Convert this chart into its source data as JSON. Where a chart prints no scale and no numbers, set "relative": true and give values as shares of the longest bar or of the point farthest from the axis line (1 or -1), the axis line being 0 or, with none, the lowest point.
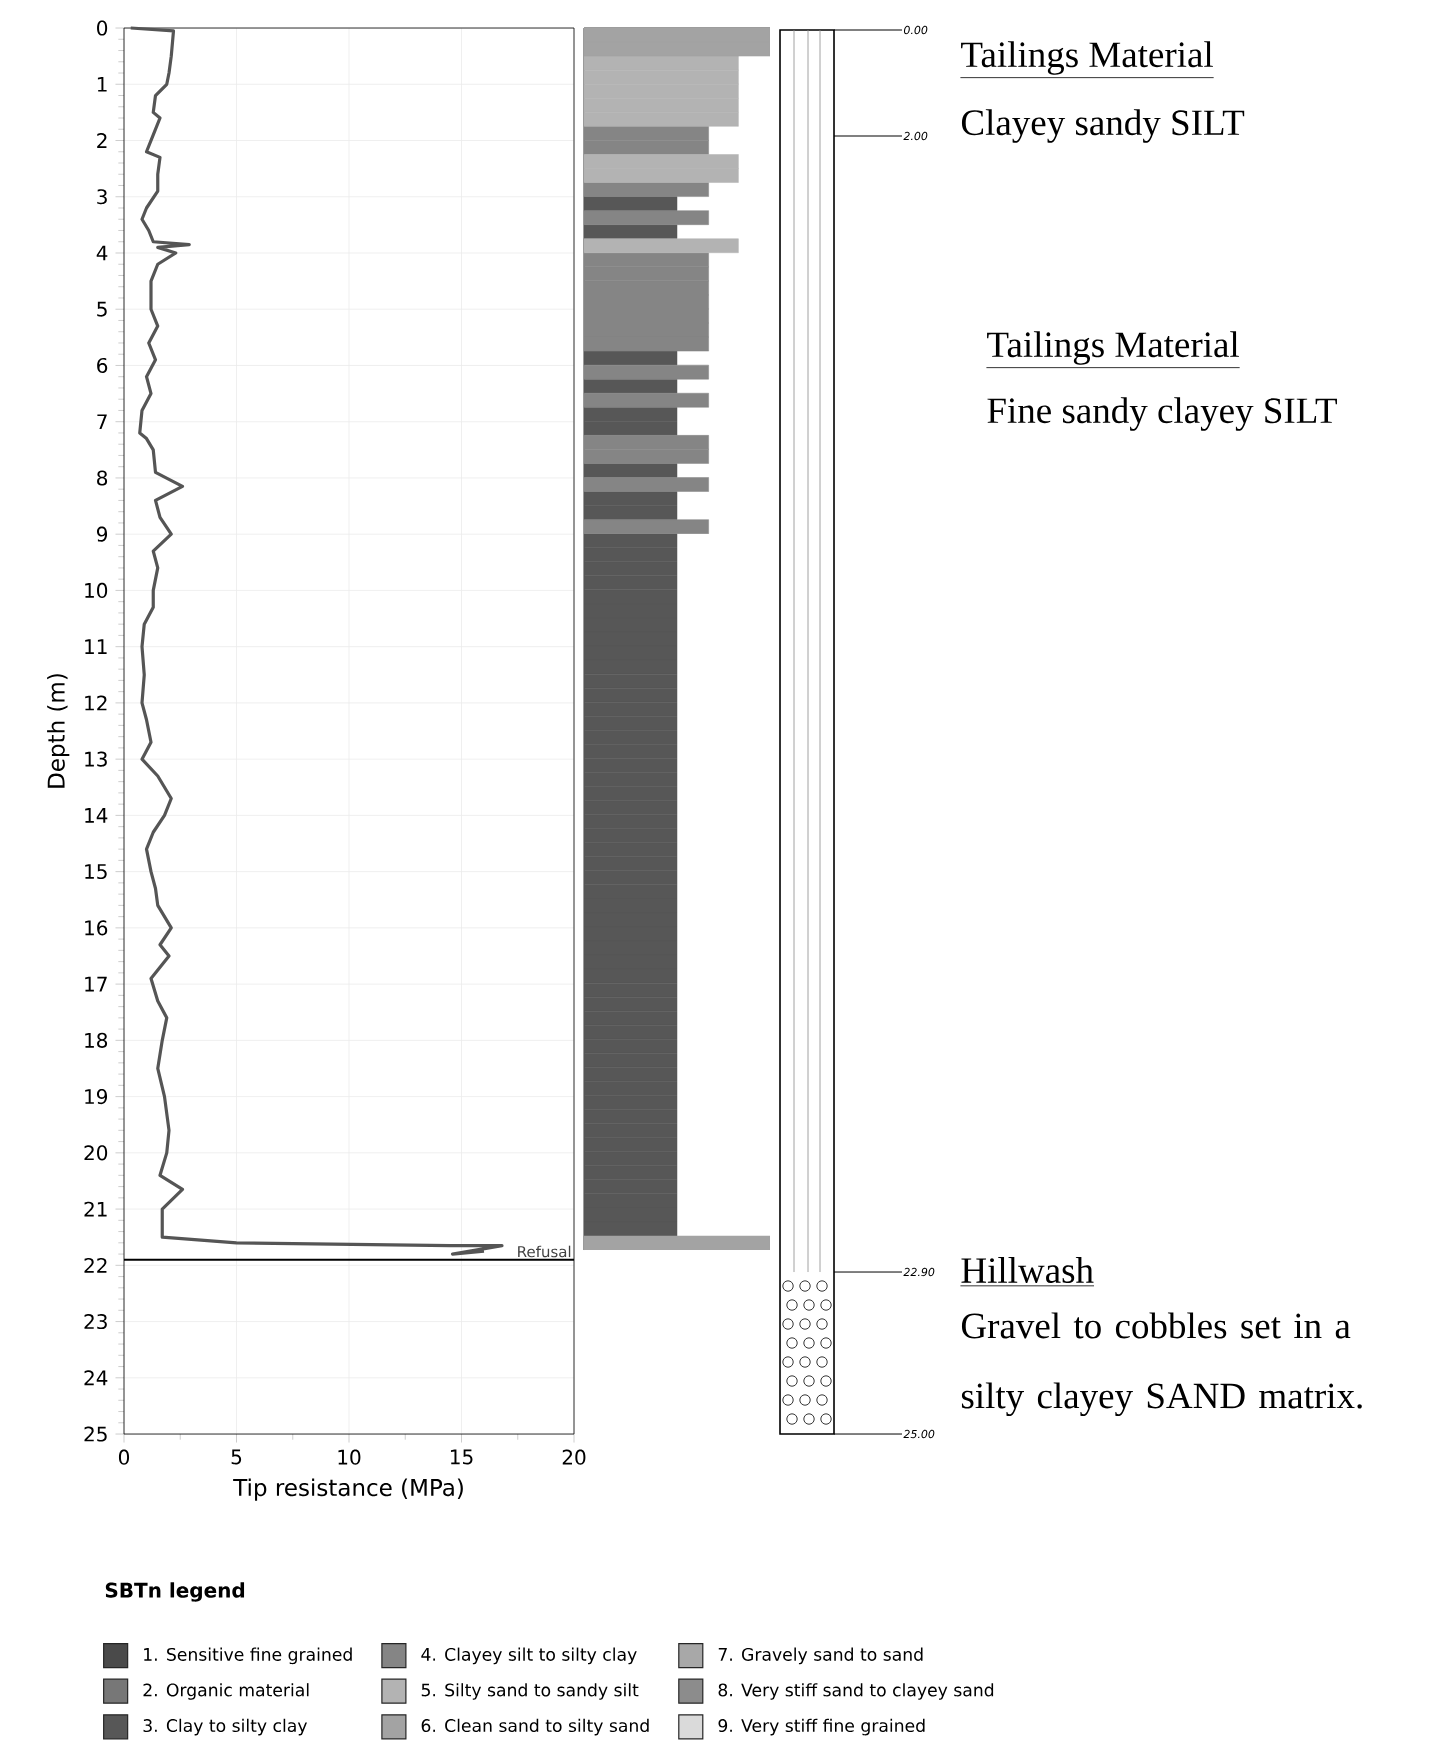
{
  "chart_data": [
    {
      "type": "line",
      "xlabel": "Tip resistance (MPa)",
      "ylabel": "Depth (m)",
      "x": [
        0.3,
        2.2,
        2.1,
        2.0,
        1.9,
        1.4,
        1.3,
        1.6,
        1.3,
        1.0,
        1.6,
        1.5,
        1.5,
        1.0,
        0.8,
        1.1,
        1.3,
        2.9,
        1.5,
        2.3,
        1.5,
        1.2,
        1.2,
        1.5,
        1.1,
        1.4,
        1.0,
        1.2,
        0.8,
        0.7,
        1.0,
        1.3,
        1.4,
        2.6,
        1.4,
        1.6,
        2.1,
        1.3,
        1.5,
        1.3,
        1.3,
        0.9,
        0.8,
        0.9,
        0.8,
        1.0,
        1.2,
        0.8,
        1.5,
        2.1,
        1.8,
        1.3,
        1.0,
        1.2,
        1.4,
        1.5,
        2.1,
        1.6,
        2.0,
        1.2,
        1.5,
        1.9,
        1.7,
        1.5,
        1.8,
        2.0,
        1.9,
        1.6,
        2.6,
        1.7,
        1.7,
        5.0,
        14.5,
        16.8,
        14.6,
        16.0
      ],
      "values": [
        0,
        0.05,
        0.5,
        0.8,
        1.0,
        1.2,
        1.5,
        1.6,
        1.9,
        2.2,
        2.3,
        2.6,
        2.9,
        3.2,
        3.4,
        3.6,
        3.8,
        3.85,
        3.9,
        4.0,
        4.2,
        4.5,
        5.0,
        5.3,
        5.6,
        5.9,
        6.2,
        6.5,
        6.8,
        7.2,
        7.3,
        7.5,
        7.9,
        8.15,
        8.4,
        8.7,
        9.0,
        9.3,
        9.6,
        10.0,
        10.3,
        10.6,
        11.0,
        11.5,
        12.0,
        12.3,
        12.7,
        13.0,
        13.3,
        13.7,
        14.0,
        14.3,
        14.6,
        15.0,
        15.3,
        15.6,
        16.0,
        16.3,
        16.5,
        16.9,
        17.3,
        17.6,
        18.0,
        18.5,
        19.0,
        19.6,
        20.0,
        20.4,
        20.65,
        21.0,
        21.5,
        21.6,
        21.65,
        21.65,
        21.8,
        21.75
      ],
      "color": "#555555",
      "xlim": [
        0,
        20
      ],
      "ylim": [
        25,
        0
      ],
      "xticks": [
        0,
        5,
        10,
        15,
        20
      ],
      "yticks": [
        0,
        1,
        2,
        3,
        4,
        5,
        6,
        7,
        8,
        9,
        10,
        11,
        12,
        13,
        14,
        15,
        16,
        17,
        18,
        19,
        20,
        21,
        22,
        23,
        24,
        25
      ],
      "grid": true,
      "ref_lines": [
        {
          "axis": "y",
          "value": 21.9,
          "label": "Refusal",
          "color": "#000000"
        }
      ]
    },
    {
      "type": "bar",
      "orientation": "horizontal",
      "stacked": true,
      "relative": true,
      "legend": "bottom",
      "legend_title": "SBTn legend",
      "categories": [
        null,
        null,
        null,
        null,
        null,
        null,
        null,
        null,
        null,
        null,
        null,
        null,
        null,
        null,
        null,
        null,
        null,
        null,
        null,
        null,
        null,
        null,
        null,
        null,
        null,
        null,
        null,
        null,
        null,
        null,
        null,
        null,
        null,
        null,
        null,
        null,
        null,
        null,
        null,
        null,
        null,
        null,
        null,
        null,
        null,
        null,
        null,
        null,
        null,
        null,
        null,
        null,
        null,
        null,
        null,
        null,
        null,
        null,
        null,
        null,
        null,
        null,
        null,
        null,
        null,
        null,
        null,
        null,
        null,
        null,
        null,
        null,
        null,
        null,
        null,
        null,
        null,
        null,
        null,
        null,
        null,
        null,
        null,
        null,
        null,
        null,
        null
      ],
      "series": [
        {
          "name": "1. Sensitive fine grained",
          "color": "#4a4a4a",
          "values": [
            null,
            null,
            null,
            null,
            null,
            null,
            null,
            null,
            null,
            null,
            null,
            null,
            null,
            null,
            null,
            null,
            null,
            null,
            null,
            null,
            null,
            null,
            null,
            null,
            null,
            null,
            null,
            null,
            null,
            null,
            null,
            null,
            null,
            null,
            null,
            null,
            null,
            null,
            null,
            null,
            null,
            null,
            null,
            null,
            null,
            null,
            null,
            null,
            null,
            null,
            null,
            null,
            null,
            null,
            null,
            null,
            null,
            null,
            null,
            null,
            null,
            null,
            null,
            null,
            null,
            null,
            null,
            null,
            null,
            null,
            null,
            null,
            null,
            null,
            null,
            null,
            null,
            null,
            null,
            null,
            null,
            null,
            null,
            null,
            null,
            null,
            null
          ]
        },
        {
          "name": "2. Organic material",
          "color": "#777777",
          "values": [
            null,
            null,
            null,
            null,
            null,
            null,
            null,
            null,
            null,
            null,
            null,
            null,
            null,
            null,
            null,
            null,
            null,
            null,
            null,
            null,
            null,
            null,
            null,
            null,
            null,
            null,
            null,
            null,
            null,
            null,
            null,
            null,
            null,
            null,
            null,
            null,
            null,
            null,
            null,
            null,
            null,
            null,
            null,
            null,
            null,
            null,
            null,
            null,
            null,
            null,
            null,
            null,
            null,
            null,
            null,
            null,
            null,
            null,
            null,
            null,
            null,
            null,
            null,
            null,
            null,
            null,
            null,
            null,
            null,
            null,
            null,
            null,
            null,
            null,
            null,
            null,
            null,
            null,
            null,
            null,
            null,
            null,
            null,
            null,
            null,
            null,
            null
          ]
        },
        {
          "name": "3. Clay to silty clay",
          "color": "#575757",
          "values": [
            null,
            null,
            null,
            null,
            null,
            null,
            null,
            null,
            null,
            null,
            null,
            null,
            0.5,
            null,
            0.5,
            null,
            null,
            null,
            null,
            null,
            null,
            null,
            null,
            0.5,
            null,
            0.5,
            null,
            0.5,
            0.5,
            null,
            null,
            0.5,
            null,
            0.5,
            0.5,
            null,
            0.5,
            0.5,
            0.5,
            0.5,
            0.5,
            0.5,
            0.5,
            0.5,
            0.5,
            0.5,
            0.5,
            0.5,
            0.5,
            0.5,
            0.5,
            0.5,
            0.5,
            0.5,
            0.5,
            0.5,
            0.5,
            0.5,
            0.5,
            0.5,
            0.5,
            0.5,
            0.5,
            0.5,
            0.5,
            0.5,
            0.5,
            0.5,
            0.5,
            0.5,
            0.5,
            0.5,
            0.5,
            0.5,
            0.5,
            0.5,
            0.5,
            0.5,
            0.5,
            0.5,
            0.5,
            0.5,
            0.5,
            0.5,
            0.5,
            0.5,
            null
          ]
        },
        {
          "name": "4. Clayey silt to silty clay",
          "color": "#858585",
          "values": [
            null,
            null,
            null,
            null,
            null,
            null,
            null,
            0.67,
            0.67,
            null,
            null,
            0.67,
            null,
            0.67,
            null,
            null,
            0.67,
            0.67,
            0.67,
            0.67,
            0.67,
            0.67,
            0.67,
            null,
            0.67,
            null,
            0.67,
            null,
            null,
            0.67,
            0.67,
            null,
            0.67,
            null,
            null,
            0.67,
            null,
            null,
            null,
            null,
            null,
            null,
            null,
            null,
            null,
            null,
            null,
            null,
            null,
            null,
            null,
            null,
            null,
            null,
            null,
            null,
            null,
            null,
            null,
            null,
            null,
            null,
            null,
            null,
            null,
            null,
            null,
            null,
            null,
            null,
            null,
            null,
            null,
            null,
            null,
            null,
            null,
            null,
            null,
            null,
            null,
            null,
            null,
            null,
            null,
            null,
            null
          ]
        },
        {
          "name": "5. Silty sand to sandy silt",
          "color": "#b3b3b3",
          "values": [
            null,
            null,
            0.83,
            0.83,
            0.83,
            0.83,
            0.83,
            null,
            null,
            0.83,
            0.83,
            null,
            null,
            null,
            null,
            0.83,
            null,
            null,
            null,
            null,
            null,
            null,
            null,
            null,
            null,
            null,
            null,
            null,
            null,
            null,
            null,
            null,
            null,
            null,
            null,
            null,
            null,
            null,
            null,
            null,
            null,
            null,
            null,
            null,
            null,
            null,
            null,
            null,
            null,
            null,
            null,
            null,
            null,
            null,
            null,
            null,
            null,
            null,
            null,
            null,
            null,
            null,
            null,
            null,
            null,
            null,
            null,
            null,
            null,
            null,
            null,
            null,
            null,
            null,
            null,
            null,
            null,
            null,
            null,
            null,
            null,
            null,
            null,
            null,
            null,
            null,
            null
          ]
        },
        {
          "name": "6. Clean sand to silty sand",
          "color": "#a3a3a3",
          "values": [
            1,
            1,
            null,
            null,
            null,
            null,
            null,
            null,
            null,
            null,
            null,
            null,
            null,
            null,
            null,
            null,
            null,
            null,
            null,
            null,
            null,
            null,
            null,
            null,
            null,
            null,
            null,
            null,
            null,
            null,
            null,
            null,
            null,
            null,
            null,
            null,
            null,
            null,
            null,
            null,
            null,
            null,
            null,
            null,
            null,
            null,
            null,
            null,
            null,
            null,
            null,
            null,
            null,
            null,
            null,
            null,
            null,
            null,
            null,
            null,
            null,
            null,
            null,
            null,
            null,
            null,
            null,
            null,
            null,
            null,
            null,
            null,
            null,
            null,
            null,
            null,
            null,
            null,
            null,
            null,
            null,
            null,
            null,
            null,
            null,
            null,
            1
          ]
        },
        {
          "name": "7. Gravely sand to sand",
          "color": "#a8a8a8",
          "values": [
            null,
            null,
            null,
            null,
            null,
            null,
            null,
            null,
            null,
            null,
            null,
            null,
            null,
            null,
            null,
            null,
            null,
            null,
            null,
            null,
            null,
            null,
            null,
            null,
            null,
            null,
            null,
            null,
            null,
            null,
            null,
            null,
            null,
            null,
            null,
            null,
            null,
            null,
            null,
            null,
            null,
            null,
            null,
            null,
            null,
            null,
            null,
            null,
            null,
            null,
            null,
            null,
            null,
            null,
            null,
            null,
            null,
            null,
            null,
            null,
            null,
            null,
            null,
            null,
            null,
            null,
            null,
            null,
            null,
            null,
            null,
            null,
            null,
            null,
            null,
            null,
            null,
            null,
            null,
            null,
            null,
            null,
            null,
            null,
            null,
            null,
            null
          ]
        },
        {
          "name": "8. Very stiff sand to clayey sand",
          "color": "#8c8c8c",
          "values": [
            null,
            null,
            null,
            null,
            null,
            null,
            null,
            null,
            null,
            null,
            null,
            null,
            null,
            null,
            null,
            null,
            null,
            null,
            null,
            null,
            null,
            null,
            null,
            null,
            null,
            null,
            null,
            null,
            null,
            null,
            null,
            null,
            null,
            null,
            null,
            null,
            null,
            null,
            null,
            null,
            null,
            null,
            null,
            null,
            null,
            null,
            null,
            null,
            null,
            null,
            null,
            null,
            null,
            null,
            null,
            null,
            null,
            null,
            null,
            null,
            null,
            null,
            null,
            null,
            null,
            null,
            null,
            null,
            null,
            null,
            null,
            null,
            null,
            null,
            null,
            null,
            null,
            null,
            null,
            null,
            null,
            null,
            null,
            null,
            null,
            null,
            null
          ]
        },
        {
          "name": "9. Very stiff fine grained",
          "color": "#dadada",
          "values": [
            null,
            null,
            null,
            null,
            null,
            null,
            null,
            null,
            null,
            null,
            null,
            null,
            null,
            null,
            null,
            null,
            null,
            null,
            null,
            null,
            null,
            null,
            null,
            null,
            null,
            null,
            null,
            null,
            null,
            null,
            null,
            null,
            null,
            null,
            null,
            null,
            null,
            null,
            null,
            null,
            null,
            null,
            null,
            null,
            null,
            null,
            null,
            null,
            null,
            null,
            null,
            null,
            null,
            null,
            null,
            null,
            null,
            null,
            null,
            null,
            null,
            null,
            null,
            null,
            null,
            null,
            null,
            null,
            null,
            null,
            null,
            null,
            null,
            null,
            null,
            null,
            null,
            null,
            null,
            null,
            null,
            null,
            null,
            null,
            null,
            null,
            null
          ]
        }
      ]
    },
    {
      "type": "other",
      "annotations": [
        "0.00",
        "2.00",
        "22.90",
        "25.00",
        "Tailings Material",
        "Clayey sandy SILT",
        "Tailings Material",
        "Fine sandy clayey SILT",
        "Hillwash",
        "Gravel to cobbles set in a silty clayey SAND matrix."
      ]
    }
  ]
}
